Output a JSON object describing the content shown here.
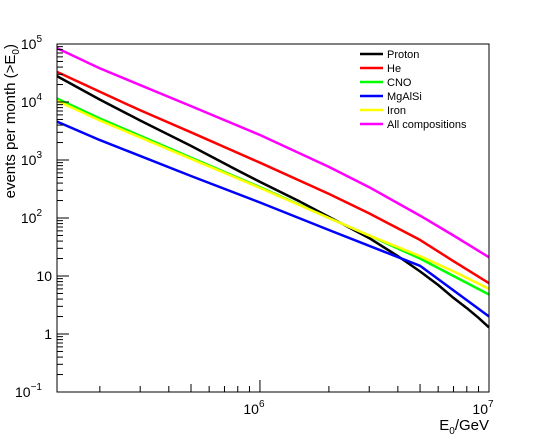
{
  "chart_data": {
    "type": "line",
    "title": "",
    "xlabel": {
      "main": "E",
      "sub": "0",
      "rest": "/GeV"
    },
    "ylabel": {
      "main": "events per month (>E",
      "sub": "0",
      "rest": ")"
    },
    "x_scale": "log",
    "y_scale": "log",
    "xlim": [
      130000,
      10000000
    ],
    "ylim": [
      0.1,
      100000
    ],
    "x_ticks": [
      {
        "value": 1000000,
        "base": "10",
        "exp": "6"
      },
      {
        "value": 10000000,
        "base": "10",
        "exp": "7"
      }
    ],
    "y_ticks": [
      {
        "value": 0.1,
        "base": "10",
        "exp": "−1"
      },
      {
        "value": 1,
        "base": "1",
        "exp": ""
      },
      {
        "value": 10,
        "base": "10",
        "exp": ""
      },
      {
        "value": 100,
        "base": "10",
        "exp": "2"
      },
      {
        "value": 1000,
        "base": "10",
        "exp": "3"
      },
      {
        "value": 10000,
        "base": "10",
        "exp": "4"
      },
      {
        "value": 100000,
        "base": "10",
        "exp": "5"
      }
    ],
    "grid": false,
    "legend_position": "top-right",
    "series": [
      {
        "name": "Proton",
        "color": "#000000",
        "x": [
          130000,
          200000,
          300000,
          500000,
          800000,
          1000000,
          1500000,
          2000000,
          3000000,
          4000000,
          5000000,
          6000000,
          7000000,
          8000000,
          9000000,
          10000000
        ],
        "y": [
          28000,
          11000,
          4800,
          1750,
          660,
          420,
          190,
          105,
          45,
          22,
          12,
          7,
          4.2,
          2.8,
          1.9,
          1.3
        ]
      },
      {
        "name": "He",
        "color": "#ff0000",
        "x": [
          130000,
          200000,
          300000,
          500000,
          1000000,
          2000000,
          3000000,
          5000000,
          7000000,
          10000000
        ],
        "y": [
          33000,
          15000,
          7200,
          3000,
          900,
          260,
          120,
          42,
          18,
          7.5
        ]
      },
      {
        "name": "CNO",
        "color": "#00ff00",
        "x": [
          130000,
          200000,
          500000,
          1000000,
          2000000,
          3000000,
          5000000,
          7000000,
          10000000
        ],
        "y": [
          11500,
          5200,
          1100,
          340,
          100,
          50,
          20,
          10,
          4.8
        ]
      },
      {
        "name": "MgAlSi",
        "color": "#0000ff",
        "x": [
          130000,
          200000,
          500000,
          1000000,
          2000000,
          5000000,
          10000000
        ],
        "y": [
          4600,
          2200,
          530,
          185,
          62,
          15,
          2
        ]
      },
      {
        "name": "Iron",
        "color": "#ffff00",
        "x": [
          130000,
          200000,
          500000,
          1000000,
          2000000,
          3000000,
          5000000,
          7000000,
          10000000
        ],
        "y": [
          10500,
          4800,
          1050,
          330,
          100,
          50,
          22,
          12,
          6
        ]
      },
      {
        "name": "All compositions",
        "color": "#ff00ff",
        "x": [
          130000,
          200000,
          500000,
          1000000,
          2000000,
          3000000,
          5000000,
          7000000,
          10000000
        ],
        "y": [
          85000,
          38000,
          8500,
          2700,
          760,
          340,
          110,
          50,
          21
        ]
      }
    ]
  }
}
